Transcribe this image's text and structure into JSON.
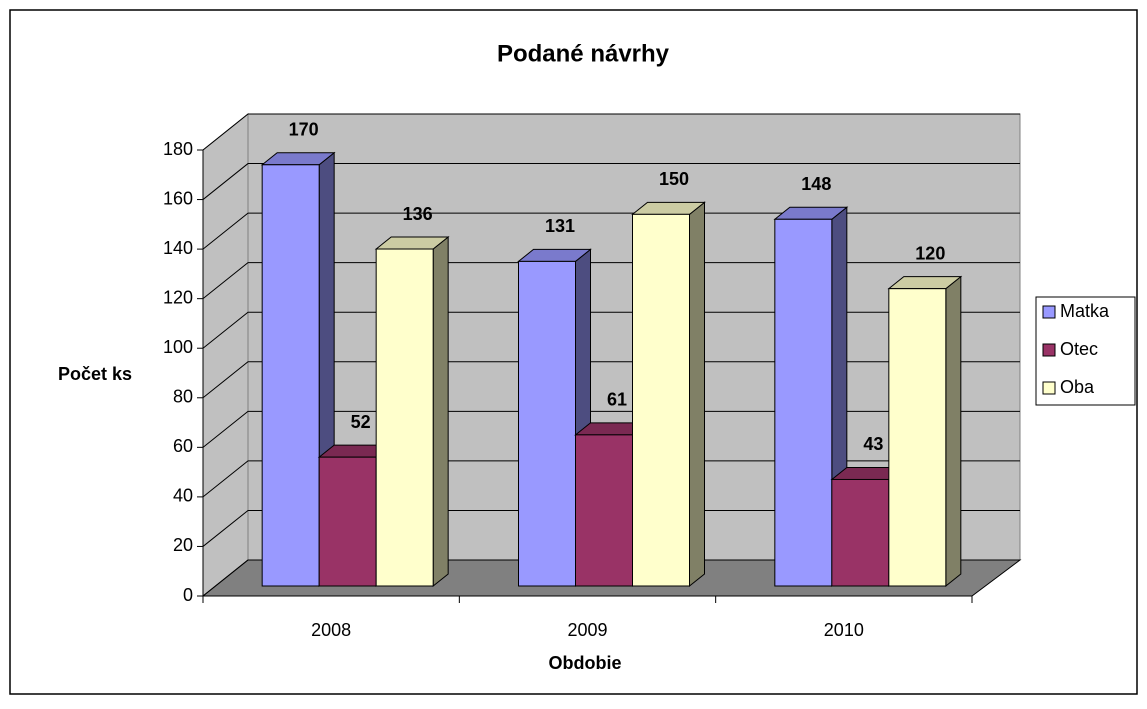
{
  "chart_data": {
    "type": "bar",
    "title": "Podané návrhy",
    "categories": [
      "2008",
      "2009",
      "2010"
    ],
    "series": [
      {
        "name": "Matka",
        "color": "#9999ff",
        "values": [
          170,
          131,
          148
        ]
      },
      {
        "name": "Otec",
        "color": "#993366",
        "values": [
          52,
          61,
          43
        ]
      },
      {
        "name": "Oba",
        "color": "#ffffcc",
        "values": [
          136,
          150,
          120
        ]
      }
    ],
    "ylim": [
      0,
      180
    ],
    "yticks": [
      0,
      20,
      40,
      60,
      80,
      100,
      120,
      140,
      160,
      180
    ],
    "x_label": "Obdobie",
    "y_label": "Počet ks",
    "grid": true,
    "legend": "right"
  }
}
